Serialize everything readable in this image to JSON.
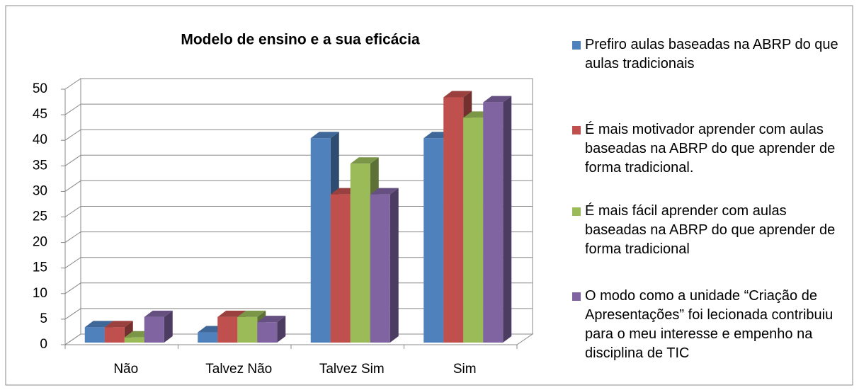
{
  "chart_data": {
    "type": "bar3d",
    "title": "Modelo de ensino e a sua eficácia",
    "categories": [
      "Não",
      "Talvez Não",
      "Talvez Sim",
      "Sim"
    ],
    "series": [
      {
        "name": "Prefiro aulas baseadas na ABRP do que aulas tradicionais",
        "color": "#4f81bd",
        "values": [
          3,
          2,
          40,
          40
        ]
      },
      {
        "name": "É mais motivador aprender com aulas baseadas na ABRP do que aprender de forma tradicional.",
        "color": "#c0504d",
        "values": [
          3,
          5,
          29,
          48
        ]
      },
      {
        "name": "É mais fácil aprender com aulas baseadas na ABRP do que aprender de forma tradicional",
        "color": "#9bbb59",
        "values": [
          1,
          5,
          35,
          44
        ]
      },
      {
        "name": "O modo como a unidade “Criação de Apresentações” foi lecionada contribuiu para o meu interesse e empenho na disciplina de TIC",
        "color": "#8064a2",
        "values": [
          5,
          4,
          29,
          47
        ]
      }
    ],
    "ylim": [
      0,
      50
    ],
    "yticks": [
      0,
      5,
      10,
      15,
      20,
      25,
      30,
      35,
      40,
      45,
      50
    ],
    "grid": true,
    "legend": "right"
  }
}
